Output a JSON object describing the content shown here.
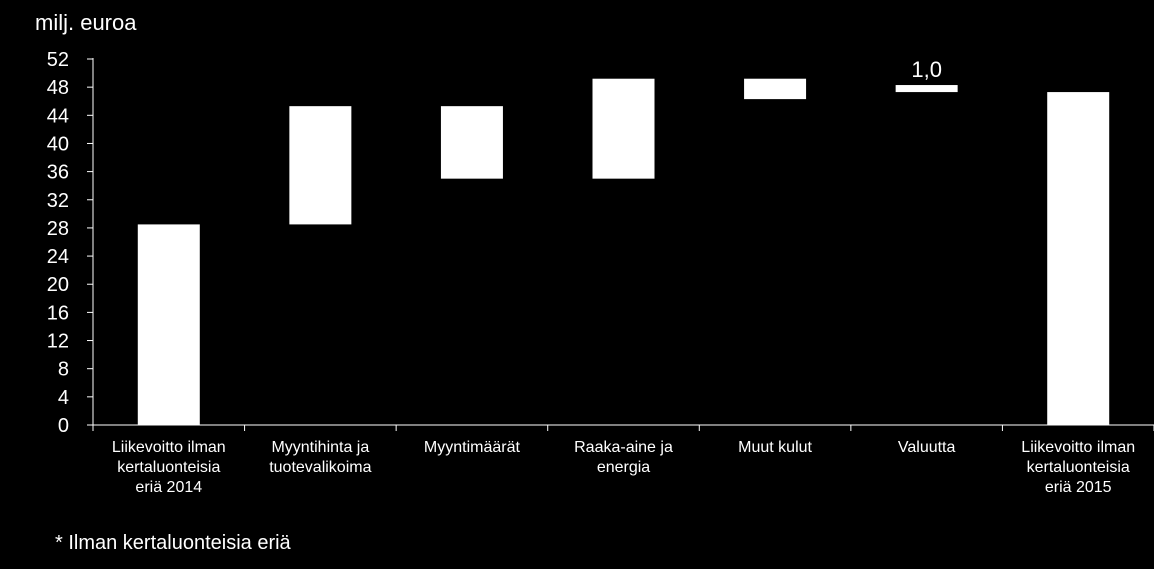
{
  "chart_data": {
    "type": "bar",
    "variant": "waterfall",
    "title": "",
    "ylabel": "milj. euroa",
    "xlabel": "",
    "ylim": [
      0,
      52
    ],
    "y_ticks": [
      "0",
      "4",
      "8",
      "12",
      "16",
      "20",
      "24",
      "28",
      "32",
      "36",
      "40",
      "44",
      "48",
      "52"
    ],
    "categories": [
      "Liikevoitto ilman kertaluonteisia eriä 2014",
      "Myyntihinta ja tuotevalikoima",
      "Myyntimäärät",
      "Raaka-aine ja energia",
      "Muut kulut",
      "Valuutta",
      "Liikevoitto ilman kertaluonteisia eriä 2015"
    ],
    "category_lines": [
      [
        "Liikevoitto ilman",
        "kertaluonteisia",
        "eriä 2014"
      ],
      [
        "Myyntihinta ja",
        "tuotevalikoima"
      ],
      [
        "Myyntimäärät"
      ],
      [
        "Raaka-aine ja",
        "energia"
      ],
      [
        "Muut kulut"
      ],
      [
        "Valuutta"
      ],
      [
        "Liikevoitto ilman",
        "kertaluonteisia",
        "eriä 2015"
      ]
    ],
    "bars": [
      {
        "base": 0,
        "top": 28.5
      },
      {
        "base": 28.5,
        "top": 45.3
      },
      {
        "base": 35.0,
        "top": 45.3
      },
      {
        "base": 35.0,
        "top": 49.2
      },
      {
        "base": 46.3,
        "top": 49.2
      },
      {
        "base": 47.3,
        "top": 48.3
      },
      {
        "base": 0,
        "top": 47.3
      }
    ],
    "data_labels": [
      "",
      "",
      "",
      "",
      "",
      "1,0",
      ""
    ],
    "bar_color": "#ffffff",
    "background": "#000000",
    "grid": false,
    "legend": "none"
  },
  "footnote": "* Ilman kertaluonteisia eriä"
}
